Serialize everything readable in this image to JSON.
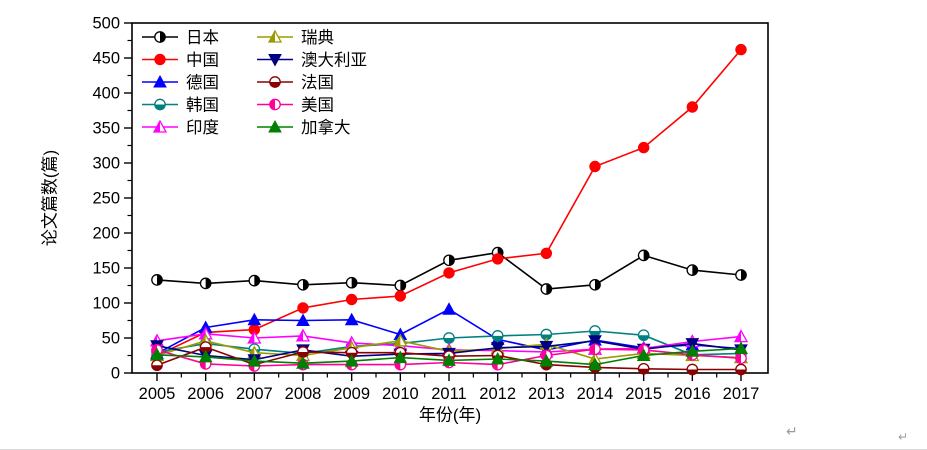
{
  "page": {
    "background": "#ffffff",
    "return_mark_glyph": "↵"
  },
  "chart_data": {
    "type": "line",
    "title": "",
    "xlabel": "年份(年)",
    "ylabel": "论文篇数(篇)",
    "x": [
      2005,
      2006,
      2007,
      2008,
      2009,
      2010,
      2011,
      2012,
      2013,
      2014,
      2015,
      2016,
      2017
    ],
    "ylim": [
      0,
      500
    ],
    "y_major_ticks": [
      0,
      50,
      100,
      150,
      200,
      250,
      300,
      350,
      400,
      450,
      500
    ],
    "y_minor_step": 25,
    "grid": "off",
    "legend_position": "inside-top-left-two-columns",
    "legend_columns": [
      [
        "日本",
        "中国",
        "德国",
        "韩国",
        "印度"
      ],
      [
        "瑞典",
        "澳大利亚",
        "法国",
        "美国",
        "加拿大"
      ]
    ],
    "series": [
      {
        "name": "日本",
        "color": "#000000",
        "marker": "circle-half-right",
        "values": [
          133,
          128,
          132,
          126,
          129,
          125,
          161,
          172,
          120,
          126,
          168,
          147,
          140
        ]
      },
      {
        "name": "中国",
        "color": "#FF0000",
        "marker": "circle",
        "values": [
          25,
          58,
          62,
          93,
          105,
          110,
          143,
          163,
          171,
          295,
          322,
          380,
          462
        ]
      },
      {
        "name": "德国",
        "color": "#0000FF",
        "marker": "triangle",
        "values": [
          28,
          65,
          76,
          75,
          76,
          55,
          91,
          48,
          33,
          47,
          36,
          40,
          35
        ]
      },
      {
        "name": "韩国",
        "color": "#008080",
        "marker": "circle-half-bottom",
        "values": [
          30,
          42,
          34,
          28,
          38,
          42,
          50,
          53,
          55,
          60,
          54,
          26,
          28
        ]
      },
      {
        "name": "印度",
        "color": "#FF00FF",
        "marker": "triangle-half-left",
        "values": [
          46,
          56,
          50,
          53,
          43,
          39,
          33,
          32,
          30,
          34,
          35,
          45,
          52
        ]
      },
      {
        "name": "瑞典",
        "color": "#9B9B00",
        "marker": "triangle-half-left",
        "values": [
          25,
          46,
          29,
          25,
          36,
          46,
          31,
          35,
          41,
          20,
          28,
          25,
          22
        ]
      },
      {
        "name": "澳大利亚",
        "color": "#000080",
        "marker": "triangle-down",
        "values": [
          39,
          25,
          19,
          33,
          24,
          27,
          28,
          36,
          38,
          46,
          34,
          42,
          33
        ]
      },
      {
        "name": "法国",
        "color": "#8B0000",
        "marker": "circle-half-bottom",
        "values": [
          11,
          37,
          12,
          30,
          29,
          29,
          24,
          25,
          12,
          8,
          6,
          5,
          5
        ]
      },
      {
        "name": "美国",
        "color": "#FF0099",
        "marker": "circle-half-left",
        "values": [
          33,
          13,
          10,
          12,
          12,
          12,
          15,
          12,
          25,
          34,
          33,
          26,
          21
        ]
      },
      {
        "name": "加拿大",
        "color": "#008000",
        "marker": "triangle",
        "values": [
          26,
          23,
          17,
          14,
          17,
          22,
          18,
          20,
          17,
          12,
          25,
          31,
          35
        ]
      }
    ]
  }
}
